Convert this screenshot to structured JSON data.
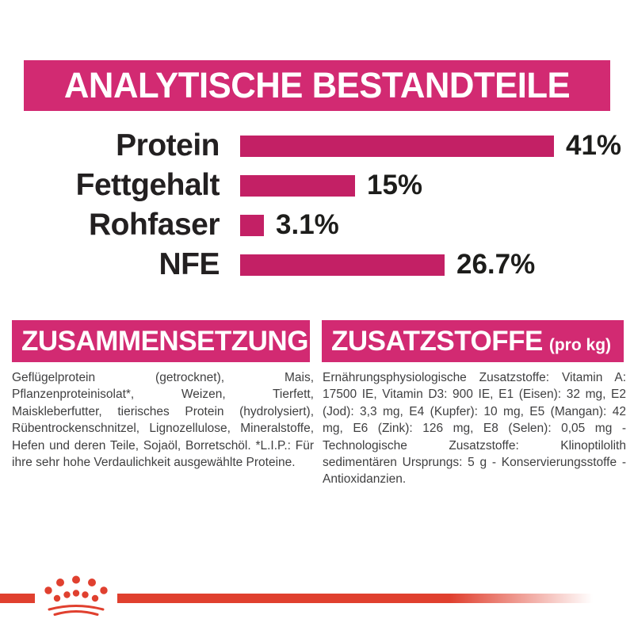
{
  "header": {
    "title": "ANALYTISCHE BESTANDTEILE"
  },
  "chart_data": {
    "type": "bar",
    "orientation": "horizontal",
    "title": "ANALYTISCHE BESTANDTEILE",
    "categories": [
      "Protein",
      "Fettgehalt",
      "Rohfaser",
      "NFE"
    ],
    "values": [
      41,
      15,
      3.1,
      26.7
    ],
    "value_labels": [
      "41%",
      "15%",
      "3.1%",
      "26.7%"
    ],
    "unit": "%",
    "xlim": [
      0,
      43
    ],
    "grid": false,
    "bar_color": "#c32065"
  },
  "composition": {
    "title": "ZUSAMMENSETZUNG",
    "body": "Geflügelprotein (getrocknet), Mais, Pflanzenproteinisolat*, Weizen, Tierfett, Maiskleberfutter, tierisches Protein (hydrolysiert), Rübentrockenschnitzel, Lignozellulose, Mineralstoffe, Hefen und deren Teile, Sojaöl, Borretschöl. *L.I.P.: Für ihre sehr hohe Verdaulichkeit ausgewählte Proteine."
  },
  "additives": {
    "title": "ZUSATZSTOFFE",
    "unit": "(pro kg)",
    "body": "Ernährungsphysiologische Zusatzstoffe: Vitamin A: 17500 IE, Vitamin D3: 900 IE, E1 (Eisen): 32 mg, E2 (Jod): 3,3 mg, E4 (Kupfer): 10 mg, E5 (Mangan): 42 mg, E6 (Zink): 126 mg, E8 (Selen): 0,05 mg - Technologische Zusatzstoffe: Klinoptilolith sedimentären Ursprungs: 5 g - Konservierungsstoffe - Antioxidanzien."
  },
  "branding": {
    "logo": "royal-canin-crown"
  },
  "colors": {
    "banner_magenta": "#d22a72",
    "bar_magenta": "#c32065",
    "brand_red": "#e0402f",
    "heading_text": "#ffffff",
    "label_text": "#232021",
    "body_text": "#3f3f40"
  }
}
